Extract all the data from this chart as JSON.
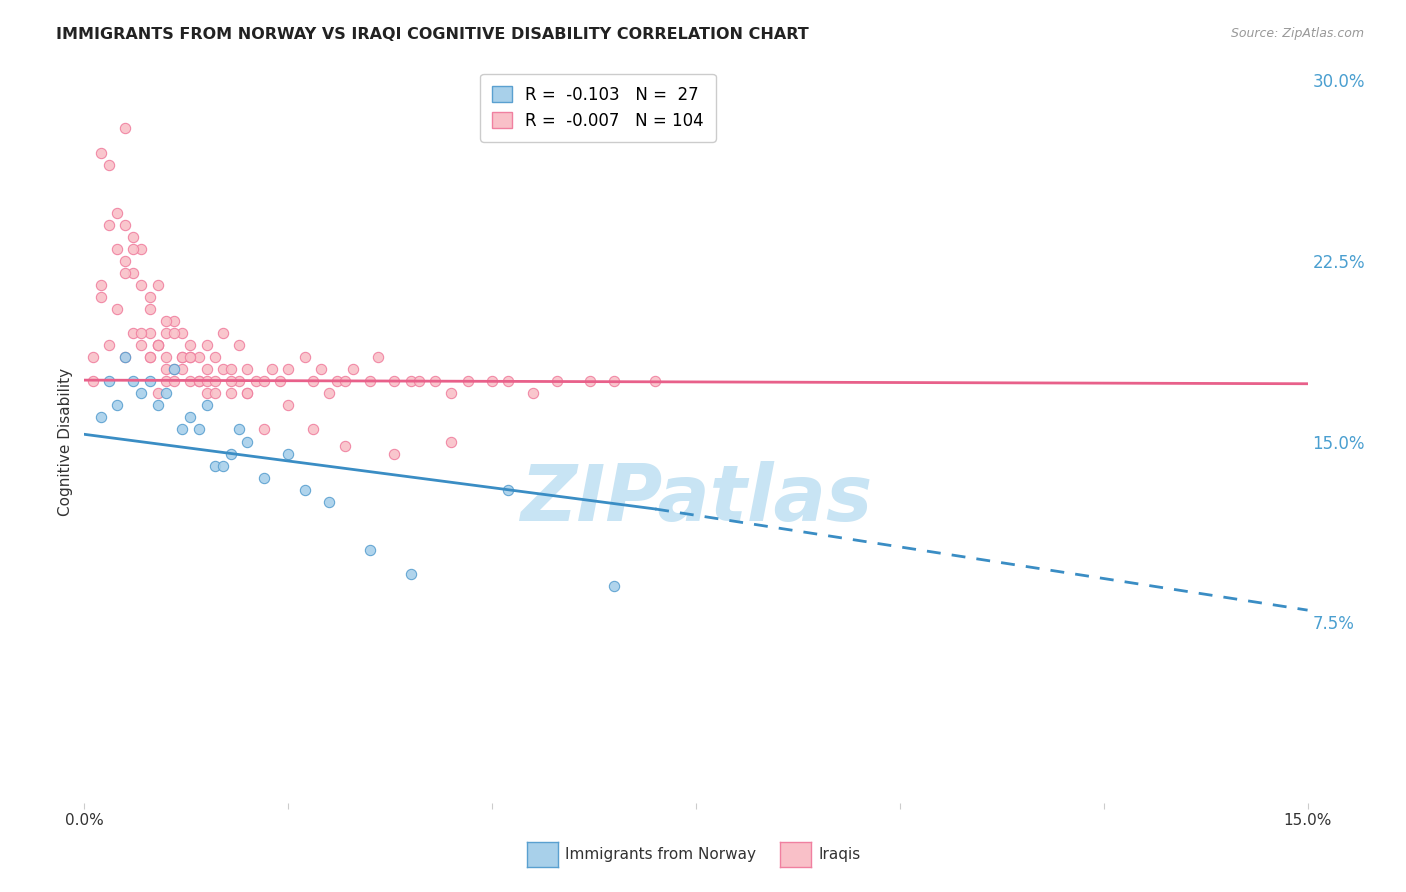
{
  "title": "IMMIGRANTS FROM NORWAY VS IRAQI COGNITIVE DISABILITY CORRELATION CHART",
  "source": "Source: ZipAtlas.com",
  "ylabel": "Cognitive Disability",
  "xmin": 0.0,
  "xmax": 0.15,
  "ymin": 0.0,
  "ymax": 0.3,
  "yticks": [
    0.0,
    0.075,
    0.15,
    0.225,
    0.3
  ],
  "ytick_labels": [
    "",
    "7.5%",
    "15.0%",
    "22.5%",
    "30.0%"
  ],
  "series1_label": "Immigrants from Norway",
  "series1_color": "#a8d0ea",
  "series1_edge": "#5aa0d0",
  "series1_R": -0.103,
  "series1_N": 27,
  "series2_label": "Iraqis",
  "series2_color": "#f9c0c8",
  "series2_edge": "#f080a0",
  "series2_R": -0.007,
  "series2_N": 104,
  "background_color": "#ffffff",
  "grid_color": "#cccccc",
  "norway_trend_start_y": 0.153,
  "norway_trend_end_x": 0.07,
  "norway_trend_end_y": 0.122,
  "norway_trend_dash_end_y": 0.08,
  "iraq_trend_y": 0.174,
  "iraq_trend_slope": -0.02,
  "norway_x": [
    0.002,
    0.003,
    0.004,
    0.005,
    0.006,
    0.007,
    0.008,
    0.009,
    0.01,
    0.011,
    0.012,
    0.013,
    0.014,
    0.015,
    0.016,
    0.017,
    0.018,
    0.019,
    0.02,
    0.022,
    0.025,
    0.027,
    0.03,
    0.035,
    0.04,
    0.052,
    0.065
  ],
  "norway_y": [
    0.16,
    0.175,
    0.165,
    0.185,
    0.175,
    0.17,
    0.175,
    0.165,
    0.17,
    0.18,
    0.155,
    0.16,
    0.155,
    0.165,
    0.14,
    0.14,
    0.145,
    0.155,
    0.15,
    0.135,
    0.145,
    0.13,
    0.125,
    0.105,
    0.095,
    0.13,
    0.09
  ],
  "iraq_x": [
    0.001,
    0.002,
    0.002,
    0.003,
    0.003,
    0.004,
    0.004,
    0.005,
    0.005,
    0.005,
    0.005,
    0.006,
    0.006,
    0.006,
    0.007,
    0.007,
    0.007,
    0.008,
    0.008,
    0.008,
    0.008,
    0.009,
    0.009,
    0.009,
    0.009,
    0.01,
    0.01,
    0.01,
    0.01,
    0.011,
    0.011,
    0.011,
    0.012,
    0.012,
    0.012,
    0.013,
    0.013,
    0.013,
    0.014,
    0.014,
    0.015,
    0.015,
    0.015,
    0.016,
    0.016,
    0.017,
    0.017,
    0.018,
    0.018,
    0.019,
    0.019,
    0.02,
    0.02,
    0.021,
    0.022,
    0.023,
    0.024,
    0.025,
    0.027,
    0.028,
    0.029,
    0.03,
    0.031,
    0.032,
    0.033,
    0.035,
    0.036,
    0.038,
    0.04,
    0.041,
    0.043,
    0.045,
    0.047,
    0.05,
    0.052,
    0.055,
    0.058,
    0.062,
    0.065,
    0.07,
    0.001,
    0.002,
    0.003,
    0.004,
    0.005,
    0.006,
    0.007,
    0.008,
    0.009,
    0.01,
    0.011,
    0.012,
    0.013,
    0.014,
    0.015,
    0.016,
    0.018,
    0.02,
    0.022,
    0.025,
    0.028,
    0.032,
    0.038,
    0.045
  ],
  "iraq_y": [
    0.185,
    0.27,
    0.215,
    0.19,
    0.265,
    0.205,
    0.245,
    0.225,
    0.185,
    0.24,
    0.28,
    0.195,
    0.235,
    0.22,
    0.215,
    0.23,
    0.19,
    0.21,
    0.195,
    0.185,
    0.205,
    0.19,
    0.215,
    0.17,
    0.19,
    0.18,
    0.195,
    0.175,
    0.185,
    0.18,
    0.2,
    0.175,
    0.185,
    0.18,
    0.195,
    0.185,
    0.19,
    0.175,
    0.185,
    0.175,
    0.19,
    0.18,
    0.17,
    0.185,
    0.17,
    0.18,
    0.195,
    0.17,
    0.18,
    0.175,
    0.19,
    0.18,
    0.17,
    0.175,
    0.175,
    0.18,
    0.175,
    0.18,
    0.185,
    0.175,
    0.18,
    0.17,
    0.175,
    0.175,
    0.18,
    0.175,
    0.185,
    0.175,
    0.175,
    0.175,
    0.175,
    0.17,
    0.175,
    0.175,
    0.175,
    0.17,
    0.175,
    0.175,
    0.175,
    0.175,
    0.175,
    0.21,
    0.24,
    0.23,
    0.22,
    0.23,
    0.195,
    0.185,
    0.19,
    0.2,
    0.195,
    0.185,
    0.185,
    0.175,
    0.175,
    0.175,
    0.175,
    0.17,
    0.155,
    0.165,
    0.155,
    0.148,
    0.145,
    0.15
  ]
}
